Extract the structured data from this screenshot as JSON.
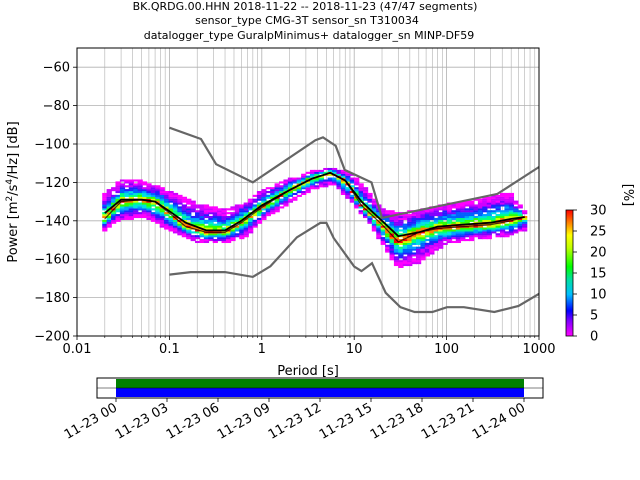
{
  "title": {
    "line1": "BK.QRDG.00.HHN   2018-11-22 -- 2018-11-23  (47/47 segments)",
    "line2": "sensor_type CMG-3T sensor_sn T310034",
    "line3": "datalogger_type GuralpMinimus+ datalogger_sn MINP-DF59"
  },
  "chart_data": [
    {
      "type": "heatmap",
      "xlabel": "Period [s]",
      "ylabel": "Power [m²/s⁴/Hz] [dB]",
      "xscale": "log",
      "xlim": [
        0.01,
        1000
      ],
      "ylim": [
        -200,
        -50
      ],
      "xticks": [
        {
          "value": 0.01,
          "label": "0.01"
        },
        {
          "value": 0.1,
          "label": "0.1"
        },
        {
          "value": 1,
          "label": "1"
        },
        {
          "value": 10,
          "label": "10"
        },
        {
          "value": 100,
          "label": "100"
        },
        {
          "value": 1000,
          "label": "1000"
        }
      ],
      "yticks": [
        -200,
        -180,
        -160,
        -140,
        -120,
        -100,
        -80,
        -60
      ],
      "grid": true,
      "colorbar": {
        "label": "[%]",
        "range": [
          0,
          30
        ],
        "ticks": [
          0,
          5,
          10,
          15,
          20,
          25,
          30
        ]
      },
      "noise_models": {
        "nhnm": [
          [
            0.1,
            -91.5
          ],
          [
            0.22,
            -97.4
          ],
          [
            0.32,
            -110.5
          ],
          [
            0.8,
            -120
          ],
          [
            3.8,
            -98
          ],
          [
            4.6,
            -96.5
          ],
          [
            6.3,
            -101
          ],
          [
            7.9,
            -113.5
          ],
          [
            15.4,
            -120
          ],
          [
            20,
            -138.5
          ],
          [
            354.8,
            -126
          ],
          [
            1000,
            -112
          ]
        ],
        "nlnm": [
          [
            0.1,
            -168
          ],
          [
            0.17,
            -166.7
          ],
          [
            0.4,
            -166.7
          ],
          [
            0.8,
            -169.2
          ],
          [
            1.24,
            -163.7
          ],
          [
            2.4,
            -148.6
          ],
          [
            4.3,
            -141.1
          ],
          [
            5,
            -141.1
          ],
          [
            6,
            -149
          ],
          [
            10,
            -163.8
          ],
          [
            12,
            -166.2
          ],
          [
            15.6,
            -162.1
          ],
          [
            21.9,
            -177.5
          ],
          [
            31.6,
            -185
          ],
          [
            45,
            -187.5
          ],
          [
            70,
            -187.5
          ],
          [
            101,
            -185
          ],
          [
            154,
            -185
          ],
          [
            328,
            -187.5
          ],
          [
            600,
            -184.4
          ],
          [
            1000,
            -178
          ]
        ]
      },
      "mean_curve": [
        [
          0.02,
          -136
        ],
        [
          0.03,
          -129
        ],
        [
          0.05,
          -129
        ],
        [
          0.07,
          -130
        ],
        [
          0.1,
          -135
        ],
        [
          0.15,
          -141
        ],
        [
          0.25,
          -145
        ],
        [
          0.4,
          -145
        ],
        [
          0.6,
          -140
        ],
        [
          1,
          -132
        ],
        [
          2,
          -124
        ],
        [
          3.5,
          -118
        ],
        [
          5.5,
          -115
        ],
        [
          8,
          -119
        ],
        [
          12,
          -130
        ],
        [
          20,
          -140
        ],
        [
          30,
          -148
        ],
        [
          50,
          -146
        ],
        [
          80,
          -143
        ],
        [
          150,
          -142
        ],
        [
          300,
          -141
        ],
        [
          500,
          -139
        ],
        [
          700,
          -138
        ]
      ],
      "mode_curve": [
        [
          0.02,
          -139
        ],
        [
          0.03,
          -130
        ],
        [
          0.05,
          -129
        ],
        [
          0.07,
          -130
        ],
        [
          0.1,
          -136
        ],
        [
          0.15,
          -143
        ],
        [
          0.25,
          -146
        ],
        [
          0.4,
          -146
        ],
        [
          0.6,
          -141
        ],
        [
          1,
          -133
        ],
        [
          2,
          -124
        ],
        [
          3.5,
          -118
        ],
        [
          5.5,
          -115
        ],
        [
          8,
          -119
        ],
        [
          12,
          -132
        ],
        [
          20,
          -142
        ],
        [
          30,
          -151
        ],
        [
          50,
          -146
        ],
        [
          80,
          -144
        ],
        [
          150,
          -143
        ],
        [
          300,
          -142
        ],
        [
          500,
          -140
        ],
        [
          700,
          -138
        ]
      ],
      "psd_spread": [
        [
          0.02,
          -126,
          -145
        ],
        [
          0.03,
          -118,
          -140
        ],
        [
          0.05,
          -119,
          -138
        ],
        [
          0.1,
          -124,
          -145
        ],
        [
          0.2,
          -131,
          -151
        ],
        [
          0.4,
          -134,
          -152
        ],
        [
          0.7,
          -130,
          -148
        ],
        [
          1,
          -124,
          -140
        ],
        [
          2,
          -118,
          -131
        ],
        [
          3.5,
          -114,
          -124
        ],
        [
          6,
          -112,
          -121
        ],
        [
          10,
          -116,
          -132
        ],
        [
          15,
          -126,
          -142
        ],
        [
          20,
          -133,
          -152
        ],
        [
          30,
          -136,
          -165
        ],
        [
          50,
          -134,
          -162
        ],
        [
          100,
          -131,
          -152
        ],
        [
          200,
          -129,
          -150
        ],
        [
          500,
          -125,
          -148
        ],
        [
          700,
          -135,
          -145
        ]
      ]
    },
    {
      "type": "timeline",
      "xticks": [
        "11-23 00",
        "11-23 03",
        "11-23 06",
        "11-23 09",
        "11-23 12",
        "11-23 15",
        "11-23 18",
        "11-23 21",
        "11-24 00"
      ],
      "coverage_rows": [
        "green",
        "blue"
      ]
    }
  ],
  "colors": {
    "mean": "#000000",
    "mode": "#000000",
    "noise_model": "#666666",
    "coverage_top": "#008000",
    "coverage_bottom": "#0000ff"
  }
}
